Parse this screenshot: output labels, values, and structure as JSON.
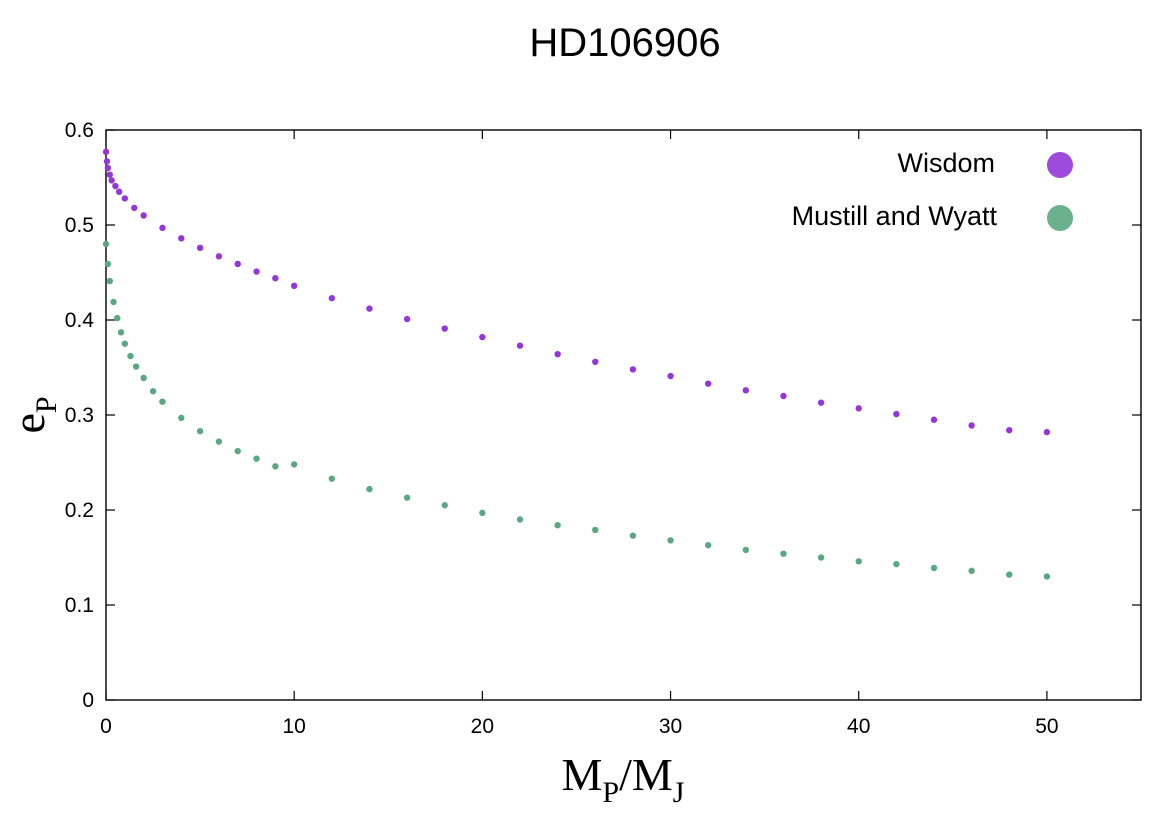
{
  "chart_data": {
    "type": "scatter",
    "title": "HD106906",
    "xlabel": {
      "main": "M",
      "sub1": "P",
      "slash": "/M",
      "sub2": "J"
    },
    "ylabel": {
      "main": "e",
      "sub": "P"
    },
    "xlim": [
      0,
      55
    ],
    "ylim": [
      0,
      0.6
    ],
    "xticks": [
      0,
      10,
      20,
      30,
      40,
      50
    ],
    "yticks": [
      0,
      0.1,
      0.2,
      0.3,
      0.4,
      0.5,
      0.6
    ],
    "xtick_labels": [
      "0",
      "10",
      "20",
      "30",
      "40",
      "50"
    ],
    "ytick_labels": [
      "0",
      "0.1",
      "0.2",
      "0.3",
      "0.4",
      "0.5",
      "0.6"
    ],
    "grid": false,
    "legend_position": "top-right",
    "series": [
      {
        "name": "Wisdom",
        "color": "#9436d8",
        "x": [
          0,
          0.05,
          0.1,
          0.2,
          0.3,
          0.5,
          0.7,
          1,
          1.5,
          2,
          3,
          4,
          5,
          6,
          7,
          8,
          9,
          10,
          12,
          14,
          16,
          18,
          20,
          22,
          24,
          26,
          28,
          30,
          32,
          34,
          36,
          38,
          40,
          42,
          44,
          46,
          48,
          50
        ],
        "y": [
          0.577,
          0.567,
          0.56,
          0.553,
          0.547,
          0.541,
          0.535,
          0.528,
          0.518,
          0.51,
          0.497,
          0.486,
          0.476,
          0.467,
          0.459,
          0.451,
          0.444,
          0.436,
          0.423,
          0.412,
          0.401,
          0.391,
          0.382,
          0.373,
          0.364,
          0.356,
          0.348,
          0.341,
          0.333,
          0.326,
          0.32,
          0.313,
          0.307,
          0.301,
          0.295,
          0.289,
          0.284,
          0.282
        ]
      },
      {
        "name": "Mustill and Wyatt",
        "color": "#5aa882",
        "x": [
          0,
          0.1,
          0.2,
          0.4,
          0.6,
          0.8,
          1,
          1.3,
          1.6,
          2,
          2.5,
          3,
          4,
          5,
          6,
          7,
          8,
          9,
          10,
          12,
          14,
          16,
          18,
          20,
          22,
          24,
          26,
          28,
          30,
          32,
          34,
          36,
          38,
          40,
          42,
          44,
          46,
          48,
          50
        ],
        "y": [
          0.48,
          0.459,
          0.441,
          0.419,
          0.402,
          0.387,
          0.375,
          0.362,
          0.351,
          0.339,
          0.325,
          0.314,
          0.297,
          0.283,
          0.272,
          0.262,
          0.254,
          0.246,
          0.248,
          0.233,
          0.222,
          0.213,
          0.205,
          0.197,
          0.19,
          0.184,
          0.179,
          0.173,
          0.168,
          0.163,
          0.158,
          0.154,
          0.15,
          0.146,
          0.143,
          0.139,
          0.136,
          0.132,
          0.13
        ]
      }
    ]
  }
}
